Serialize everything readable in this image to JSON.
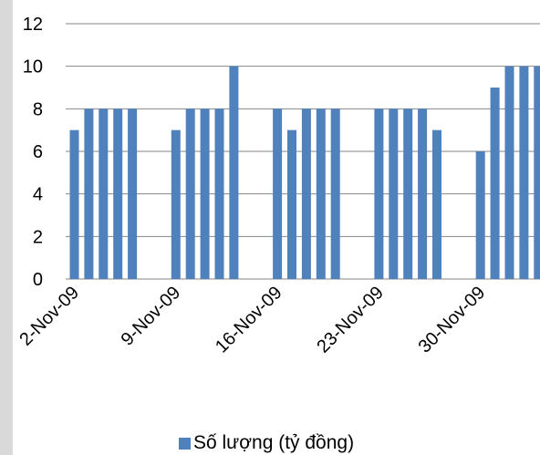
{
  "chart_data": {
    "type": "bar",
    "title": "",
    "xlabel": "",
    "ylabel": "",
    "ylim": [
      0,
      12
    ],
    "yticks": [
      0,
      2,
      4,
      6,
      8,
      10,
      12
    ],
    "grid": "horizontal",
    "legend_position": "bottom",
    "color": "#4f81bd",
    "x_tick_labels": [
      "2-Nov-09",
      "9-Nov-09",
      "16-Nov-09",
      "23-Nov-09",
      "30-Nov-09"
    ],
    "series": [
      {
        "name": "Số lượng (tỷ đồng)",
        "points": [
          {
            "date": "2-Nov-09",
            "value": 7
          },
          {
            "date": "3-Nov-09",
            "value": 8
          },
          {
            "date": "4-Nov-09",
            "value": 8
          },
          {
            "date": "5-Nov-09",
            "value": 8
          },
          {
            "date": "6-Nov-09",
            "value": 8
          },
          {
            "date": "9-Nov-09",
            "value": 7
          },
          {
            "date": "10-Nov-09",
            "value": 8
          },
          {
            "date": "11-Nov-09",
            "value": 8
          },
          {
            "date": "12-Nov-09",
            "value": 8
          },
          {
            "date": "13-Nov-09",
            "value": 10
          },
          {
            "date": "16-Nov-09",
            "value": 8
          },
          {
            "date": "17-Nov-09",
            "value": 7
          },
          {
            "date": "18-Nov-09",
            "value": 8
          },
          {
            "date": "19-Nov-09",
            "value": 8
          },
          {
            "date": "20-Nov-09",
            "value": 8
          },
          {
            "date": "23-Nov-09",
            "value": 8
          },
          {
            "date": "24-Nov-09",
            "value": 8
          },
          {
            "date": "25-Nov-09",
            "value": 8
          },
          {
            "date": "26-Nov-09",
            "value": 8
          },
          {
            "date": "27-Nov-09",
            "value": 7
          },
          {
            "date": "30-Nov-09",
            "value": 6
          },
          {
            "date": "1-Dec-09",
            "value": 9
          },
          {
            "date": "2-Dec-09",
            "value": 10
          },
          {
            "date": "3-Dec-09",
            "value": 10
          },
          {
            "date": "4-Dec-09",
            "value": 10
          }
        ]
      }
    ]
  }
}
